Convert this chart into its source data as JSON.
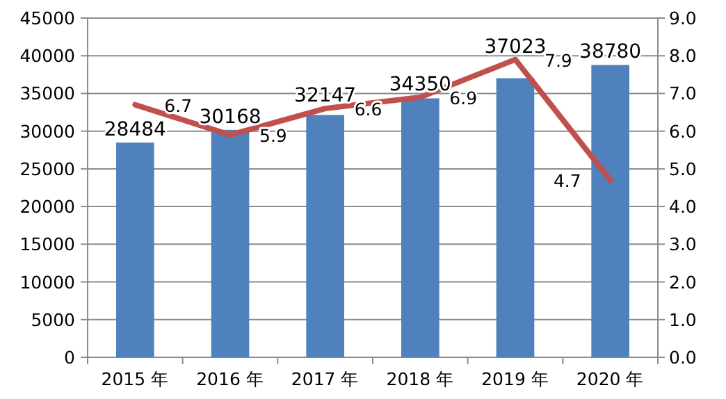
{
  "chart_data": {
    "type": "bar",
    "categories": [
      "2015 年",
      "2016 年",
      "2017 年",
      "2018 年",
      "2019 年",
      "2020 年"
    ],
    "series": [
      {
        "color": "#4f81bd",
        "values": [
          28484,
          30168,
          32147,
          34350,
          37023,
          38780
        ]
      },
      {
        "type": "line",
        "axis": "y2",
        "color": "#c0504d",
        "values": [
          6.7,
          5.9,
          6.6,
          6.9,
          7.9,
          4.7
        ]
      }
    ],
    "ylim": [
      0,
      45000
    ],
    "yticks": [
      0,
      5000,
      10000,
      15000,
      20000,
      25000,
      30000,
      35000,
      40000,
      45000
    ],
    "y2lim": [
      0,
      9
    ],
    "y2ticks": [
      {
        "value": 0,
        "label": "0.0"
      },
      {
        "value": 1,
        "label": "1.0"
      },
      {
        "value": 2,
        "label": "2.0"
      },
      {
        "value": 3,
        "label": "3.0"
      },
      {
        "value": 4,
        "label": "4.0"
      },
      {
        "value": 5,
        "label": "5.0"
      },
      {
        "value": 6,
        "label": "6.0"
      },
      {
        "value": 7,
        "label": "7.0"
      },
      {
        "value": 8,
        "label": "8.0"
      },
      {
        "value": 9,
        "label": "9.0"
      }
    ],
    "grid": "y",
    "data_labels": true,
    "marker": "none",
    "line_style": "solid"
  }
}
